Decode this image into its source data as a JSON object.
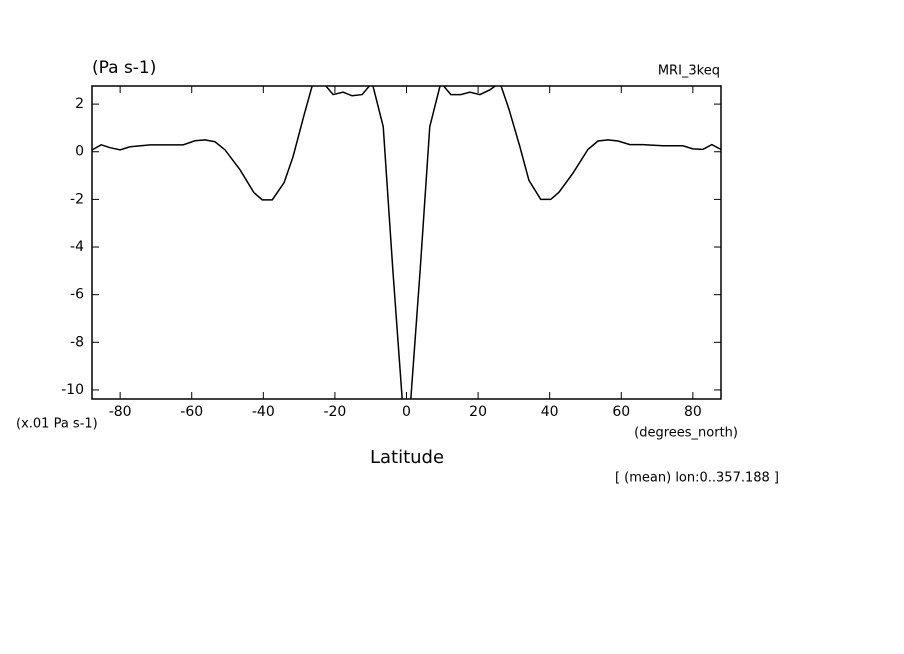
{
  "chart_data": {
    "type": "line",
    "title": "(Pa s-1)",
    "subtitle": "MRI_3keq",
    "y_axis_label": "(x.01 Pa s-1)",
    "x_axis_unit": "(degrees_north)",
    "x_axis_label": "Latitude",
    "annotation": "[ (mean) lon:0..357.188 ]",
    "x": [
      -87.8,
      -85.3,
      -82.8,
      -80,
      -77.2,
      -71.6,
      -66.0,
      -62.4,
      -59.1,
      -56.3,
      -53.5,
      -50.7,
      -46.5,
      -42.6,
      -40.3,
      -37.5,
      -34.2,
      -31.7,
      -28.6,
      -26.1,
      -23.3,
      -20.5,
      -17.7,
      -15.2,
      -12.4,
      -9.6,
      -6.5,
      -3.8,
      -1.0,
      1.0,
      3.8,
      6.5,
      9.6,
      12.4,
      15.2,
      17.7,
      20.5,
      23.3,
      26.1,
      28.6,
      31.7,
      34.2,
      37.5,
      40.3,
      42.6,
      46.5,
      50.7,
      53.5,
      56.3,
      59.1,
      62.4,
      66.0,
      71.6,
      77.2,
      80,
      82.8,
      85.3,
      87.8
    ],
    "series": [
      {
        "name": "MRI_3keq",
        "color": "#000000",
        "values": [
          0.08,
          0.29,
          0.17,
          0.08,
          0.21,
          0.29,
          0.29,
          0.29,
          0.46,
          0.5,
          0.42,
          0.08,
          -0.76,
          -1.72,
          -2.02,
          -2.02,
          -1.3,
          -0.21,
          1.55,
          2.9,
          2.9,
          2.4,
          2.5,
          2.35,
          2.4,
          2.9,
          1.05,
          -5.0,
          -10.8,
          -10.8,
          -5.0,
          1.05,
          2.9,
          2.4,
          2.4,
          2.5,
          2.4,
          2.6,
          2.9,
          1.8,
          0.2,
          -1.2,
          -2.0,
          -2.0,
          -1.7,
          -0.9,
          0.1,
          0.45,
          0.5,
          0.45,
          0.3,
          0.3,
          0.25,
          0.25,
          0.12,
          0.1,
          0.3,
          0.1
        ]
      }
    ],
    "xlim": [
      -87.86,
      87.86
    ],
    "ylim": [
      -10.38,
      2.76
    ],
    "xticks": [
      -80,
      -60,
      -40,
      -20,
      0,
      20,
      40,
      60,
      80
    ],
    "yticks": [
      -10,
      -8,
      -6,
      -4,
      -2,
      0,
      2
    ]
  }
}
